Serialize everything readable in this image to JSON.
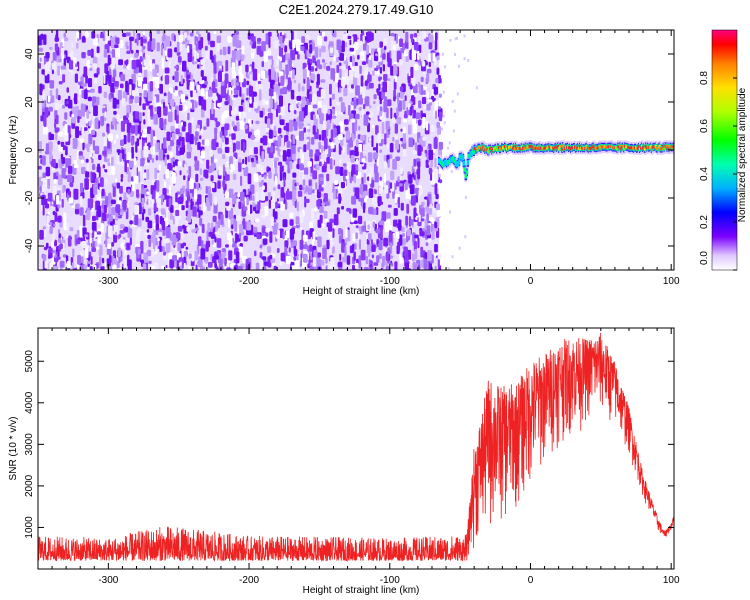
{
  "page": {
    "title": "C2E1.2024.279.17.49.G10"
  },
  "chart_data": [
    {
      "type": "heatmap",
      "title": "C2E1.2024.279.17.49.G10",
      "xlabel": "Height of straight line (km)",
      "ylabel": "Frequency (Hz)",
      "xlim": [
        -350,
        102
      ],
      "ylim": [
        -50,
        50
      ],
      "x_ticks": [
        -300,
        -200,
        -100,
        0,
        100
      ],
      "x_tick_labels": [
        "-300",
        "-200",
        "-100",
        "0",
        "100"
      ],
      "y_ticks": [
        -40,
        -20,
        0,
        20,
        40
      ],
      "y_tick_labels": [
        "-40",
        "-20",
        "0",
        "20",
        "40"
      ],
      "noise_region_x": [
        -350,
        -65
      ],
      "signal_track": {
        "x": [
          -65,
          -62,
          -58,
          -55,
          -52,
          -50,
          -48,
          -46,
          -44,
          -42,
          -40,
          -35,
          -30,
          -20,
          -10,
          0,
          20,
          40,
          60,
          80,
          100
        ],
        "frequency": [
          -4,
          -6,
          -5,
          -3,
          -7,
          -2,
          -4,
          -11,
          -3,
          -1,
          0,
          1,
          0,
          1,
          1,
          1,
          1,
          1,
          1,
          1,
          1
        ]
      },
      "colorbar": {
        "label": "Normalized spectral amplitude",
        "range": [
          0,
          1
        ],
        "ticks": [
          0.0,
          0.2,
          0.4,
          0.6,
          0.8
        ],
        "tick_labels": [
          "0.0",
          "0.2",
          "0.4",
          "0.6",
          "0.8"
        ],
        "colors": [
          "#ffffff",
          "#e0c8ff",
          "#7a00ff",
          "#0000ff",
          "#00b0ff",
          "#00ffb0",
          "#00ff00",
          "#b0ff00",
          "#ffe000",
          "#ff8000",
          "#ff0000",
          "#ff0080"
        ]
      }
    },
    {
      "type": "line",
      "xlabel": "Height of straight line (km)",
      "ylabel": "SNR (10 * v/v)",
      "xlim": [
        -350,
        102
      ],
      "ylim": [
        0,
        5800
      ],
      "x_ticks": [
        -300,
        -200,
        -100,
        0,
        100
      ],
      "x_tick_labels": [
        "-300",
        "-200",
        "-100",
        "0",
        "100"
      ],
      "y_ticks": [
        1000,
        2000,
        3000,
        4000,
        5000
      ],
      "y_tick_labels": [
        "1000",
        "2000",
        "3000",
        "4000",
        "5000"
      ],
      "color": "#ee2222",
      "envelope": {
        "x": [
          -350,
          -300,
          -260,
          -200,
          -150,
          -100,
          -60,
          -45,
          -40,
          -35,
          -30,
          -20,
          -10,
          0,
          10,
          20,
          30,
          40,
          50,
          60,
          70,
          80,
          90,
          95,
          100,
          102
        ],
        "low": [
          200,
          200,
          200,
          200,
          200,
          200,
          200,
          200,
          400,
          500,
          600,
          900,
          1200,
          1800,
          2300,
          2900,
          3100,
          3400,
          3600,
          3300,
          2700,
          1700,
          900,
          700,
          900,
          1100
        ],
        "high": [
          800,
          750,
          1050,
          800,
          780,
          750,
          800,
          850,
          3000,
          3700,
          4600,
          4400,
          4500,
          5000,
          5200,
          5500,
          5600,
          5550,
          5700,
          5000,
          3900,
          2300,
          1300,
          900,
          1100,
          1300
        ]
      }
    }
  ]
}
